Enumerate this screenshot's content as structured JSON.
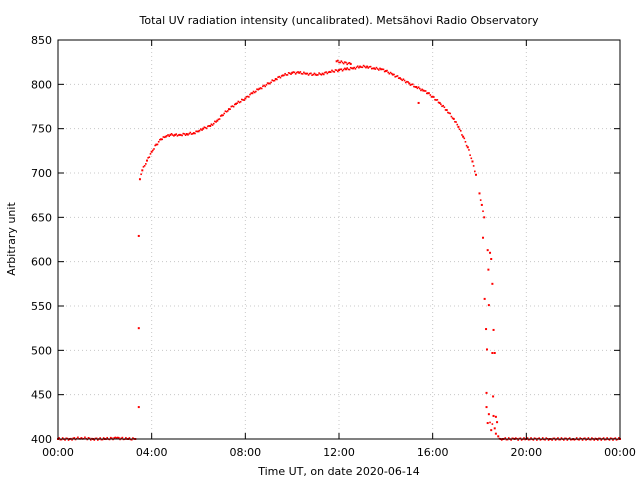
{
  "chart_data": {
    "type": "scatter",
    "title": "Total UV radiation intensity (uncalibrated). Metsähovi Radio Observatory",
    "xlabel": "Time UT, on date 2020-06-14",
    "ylabel": "Arbitrary unit",
    "xlim": [
      0,
      24
    ],
    "ylim": [
      400,
      850
    ],
    "x_unit": "hours UT",
    "xticks": [
      0,
      4,
      8,
      12,
      16,
      20,
      24
    ],
    "xtick_labels": [
      "00:00",
      "04:00",
      "08:00",
      "12:00",
      "16:00",
      "20:00",
      "00:00"
    ],
    "yticks": [
      400,
      450,
      500,
      550,
      600,
      650,
      700,
      750,
      800,
      850
    ],
    "ytick_labels": [
      "400",
      "450",
      "500",
      "550",
      "600",
      "650",
      "700",
      "750",
      "800",
      "850"
    ],
    "grid": true,
    "legend": "none",
    "series": [
      {
        "color": "#ff0000",
        "points": [
          [
            0.0,
            400
          ],
          [
            0.5,
            400
          ],
          [
            1.0,
            401
          ],
          [
            1.5,
            400
          ],
          [
            2.0,
            400
          ],
          [
            2.5,
            401
          ],
          [
            3.0,
            400
          ],
          [
            3.3,
            400
          ],
          [
            3.45,
            436
          ],
          [
            3.45,
            525
          ],
          [
            3.45,
            629
          ],
          [
            3.5,
            693
          ],
          [
            3.6,
            703
          ],
          [
            3.8,
            714
          ],
          [
            4.0,
            724
          ],
          [
            4.2,
            732
          ],
          [
            4.4,
            738
          ],
          [
            4.6,
            741
          ],
          [
            4.8,
            743
          ],
          [
            5.0,
            743
          ],
          [
            5.2,
            743
          ],
          [
            5.5,
            744
          ],
          [
            5.8,
            745
          ],
          [
            6.0,
            747
          ],
          [
            6.2,
            750
          ],
          [
            6.5,
            753
          ],
          [
            6.8,
            759
          ],
          [
            7.0,
            765
          ],
          [
            7.3,
            772
          ],
          [
            7.6,
            778
          ],
          [
            8.0,
            784
          ],
          [
            8.3,
            790
          ],
          [
            8.6,
            795
          ],
          [
            9.0,
            801
          ],
          [
            9.3,
            806
          ],
          [
            9.6,
            810
          ],
          [
            10.0,
            813
          ],
          [
            10.3,
            813
          ],
          [
            10.6,
            812
          ],
          [
            11.0,
            811
          ],
          [
            11.3,
            812
          ],
          [
            11.6,
            814
          ],
          [
            12.0,
            816
          ],
          [
            12.3,
            817
          ],
          [
            12.6,
            818
          ],
          [
            12.9,
            820
          ],
          [
            13.2,
            820
          ],
          [
            13.5,
            818
          ],
          [
            13.8,
            817
          ],
          [
            14.0,
            815
          ],
          [
            14.3,
            811
          ],
          [
            14.6,
            807
          ],
          [
            15.0,
            801
          ],
          [
            15.3,
            797
          ],
          [
            15.6,
            793
          ],
          [
            15.8,
            790
          ],
          [
            16.0,
            786
          ],
          [
            16.3,
            779
          ],
          [
            16.6,
            771
          ],
          [
            16.9,
            761
          ],
          [
            17.1,
            752
          ],
          [
            17.3,
            741
          ],
          [
            17.5,
            729
          ],
          [
            17.7,
            713
          ],
          [
            17.85,
            698
          ],
          [
            18.0,
            677
          ],
          [
            18.1,
            664
          ],
          [
            18.2,
            650
          ],
          [
            11.9,
            826
          ],
          [
            12.5,
            823
          ],
          [
            15.4,
            779
          ],
          [
            18.15,
            627
          ],
          [
            18.22,
            558
          ],
          [
            18.28,
            524
          ],
          [
            18.32,
            501
          ],
          [
            18.35,
            613
          ],
          [
            18.38,
            591
          ],
          [
            18.4,
            551
          ],
          [
            18.45,
            610
          ],
          [
            18.5,
            603
          ],
          [
            18.55,
            575
          ],
          [
            18.55,
            497
          ],
          [
            18.58,
            448
          ],
          [
            18.6,
            523
          ],
          [
            18.65,
            497
          ],
          [
            18.3,
            452
          ],
          [
            18.3,
            436
          ],
          [
            18.35,
            418
          ],
          [
            18.4,
            428
          ],
          [
            18.5,
            410
          ],
          [
            18.6,
            426
          ],
          [
            18.65,
            412
          ],
          [
            18.7,
            425
          ],
          [
            18.7,
            406
          ],
          [
            18.75,
            419
          ],
          [
            18.8,
            403
          ],
          [
            18.9,
            400
          ],
          [
            19.0,
            400
          ],
          [
            19.5,
            400
          ],
          [
            20.0,
            400
          ],
          [
            21.0,
            400
          ],
          [
            22.0,
            400
          ],
          [
            23.0,
            400
          ],
          [
            24.0,
            400
          ]
        ]
      }
    ]
  }
}
